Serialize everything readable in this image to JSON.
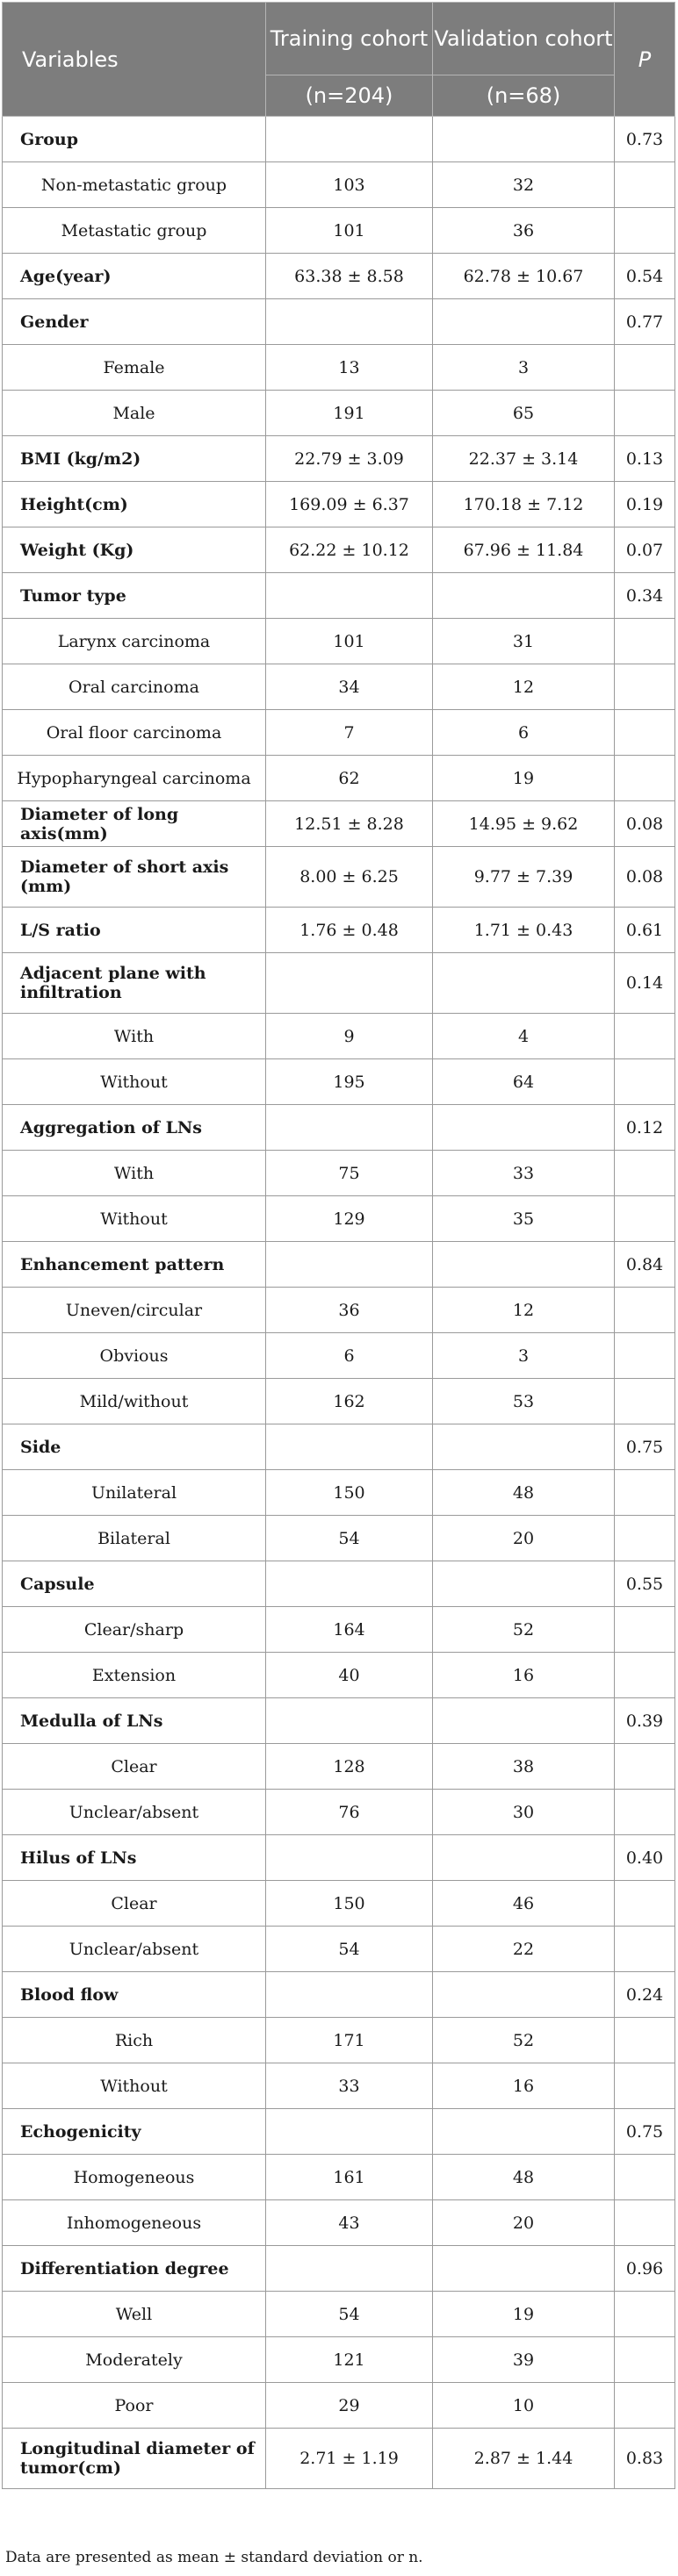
{
  "header": {
    "variables": "Variables",
    "training": "Training cohort",
    "training_n": "(n=204)",
    "validation": "Validation cohort",
    "validation_n": "(n=68)",
    "p": "P"
  },
  "rows": [
    {
      "label": "Group",
      "type": "cat",
      "train": "",
      "val": "",
      "p": "0.73"
    },
    {
      "label": "Non-metastatic group",
      "type": "sub",
      "train": "103",
      "val": "32",
      "p": ""
    },
    {
      "label": "Metastatic group",
      "type": "sub",
      "train": "101",
      "val": "36",
      "p": ""
    },
    {
      "label": "Age(year)",
      "type": "cat",
      "train": "63.38 ± 8.58",
      "val": "62.78 ± 10.67",
      "p": "0.54"
    },
    {
      "label": "Gender",
      "type": "cat",
      "train": "",
      "val": "",
      "p": "0.77"
    },
    {
      "label": "Female",
      "type": "sub",
      "train": "13",
      "val": "3",
      "p": ""
    },
    {
      "label": "Male",
      "type": "sub",
      "train": "191",
      "val": "65",
      "p": ""
    },
    {
      "label": "BMI (kg/m2)",
      "type": "cat",
      "train": "22.79 ± 3.09",
      "val": "22.37 ± 3.14",
      "p": "0.13"
    },
    {
      "label": "Height(cm)",
      "type": "cat",
      "train": "169.09 ± 6.37",
      "val": "170.18 ± 7.12",
      "p": "0.19"
    },
    {
      "label": "Weight (Kg)",
      "type": "cat",
      "train": "62.22 ± 10.12",
      "val": "67.96 ± 11.84",
      "p": "0.07"
    },
    {
      "label": "Tumor type",
      "type": "cat",
      "train": "",
      "val": "",
      "p": "0.34"
    },
    {
      "label": "Larynx carcinoma",
      "type": "sub",
      "train": "101",
      "val": "31",
      "p": ""
    },
    {
      "label": "Oral carcinoma",
      "type": "sub",
      "train": "34",
      "val": "12",
      "p": ""
    },
    {
      "label": "Oral floor carcinoma",
      "type": "sub",
      "train": "7",
      "val": "6",
      "p": ""
    },
    {
      "label": "Hypopharyngeal carcinoma",
      "type": "sub",
      "train": "62",
      "val": "19",
      "p": ""
    },
    {
      "label": "Diameter of long axis(mm)",
      "type": "cat",
      "train": "12.51 ± 8.28",
      "val": "14.95 ± 9.62",
      "p": "0.08"
    },
    {
      "label": "Diameter of short axis (mm)",
      "type": "cat",
      "tall": true,
      "train": "8.00 ± 6.25",
      "val": "9.77 ± 7.39",
      "p": "0.08"
    },
    {
      "label": "L/S ratio",
      "type": "cat",
      "train": "1.76 ± 0.48",
      "val": "1.71 ± 0.43",
      "p": "0.61"
    },
    {
      "label": "Adjacent plane with infiltration",
      "type": "cat",
      "tall": true,
      "train": "",
      "val": "",
      "p": "0.14"
    },
    {
      "label": "With",
      "type": "sub",
      "train": "9",
      "val": "4",
      "p": ""
    },
    {
      "label": "Without",
      "type": "sub",
      "train": "195",
      "val": "64",
      "p": ""
    },
    {
      "label": "Aggregation of LNs",
      "type": "cat",
      "train": "",
      "val": "",
      "p": "0.12"
    },
    {
      "label": "With",
      "type": "sub",
      "train": "75",
      "val": "33",
      "p": ""
    },
    {
      "label": "Without",
      "type": "sub",
      "train": "129",
      "val": "35",
      "p": ""
    },
    {
      "label": "Enhancement pattern",
      "type": "cat",
      "train": "",
      "val": "",
      "p": "0.84"
    },
    {
      "label": "Uneven/circular",
      "type": "sub",
      "train": "36",
      "val": "12",
      "p": ""
    },
    {
      "label": "Obvious",
      "type": "sub",
      "train": "6",
      "val": "3",
      "p": ""
    },
    {
      "label": "Mild/without",
      "type": "sub",
      "train": "162",
      "val": "53",
      "p": ""
    },
    {
      "label": "Side",
      "type": "cat",
      "train": "",
      "val": "",
      "p": "0.75"
    },
    {
      "label": "Unilateral",
      "type": "sub",
      "train": "150",
      "val": "48",
      "p": ""
    },
    {
      "label": "Bilateral",
      "type": "sub",
      "train": "54",
      "val": "20",
      "p": ""
    },
    {
      "label": "Capsule",
      "type": "cat",
      "train": "",
      "val": "",
      "p": "0.55"
    },
    {
      "label": "Clear/sharp",
      "type": "sub",
      "train": "164",
      "val": "52",
      "p": ""
    },
    {
      "label": "Extension",
      "type": "sub",
      "train": "40",
      "val": "16",
      "p": ""
    },
    {
      "label": "Medulla of LNs",
      "type": "cat",
      "train": "",
      "val": "",
      "p": "0.39"
    },
    {
      "label": "Clear",
      "type": "sub",
      "train": "128",
      "val": "38",
      "p": ""
    },
    {
      "label": "Unclear/absent",
      "type": "sub",
      "train": "76",
      "val": "30",
      "p": ""
    },
    {
      "label": "Hilus of LNs",
      "type": "cat",
      "train": "",
      "val": "",
      "p": "0.40"
    },
    {
      "label": "Clear",
      "type": "sub",
      "train": "150",
      "val": "46",
      "p": ""
    },
    {
      "label": "Unclear/absent",
      "type": "sub",
      "train": "54",
      "val": "22",
      "p": ""
    },
    {
      "label": "Blood flow",
      "type": "cat",
      "train": "",
      "val": "",
      "p": "0.24"
    },
    {
      "label": "Rich",
      "type": "sub",
      "train": "171",
      "val": "52",
      "p": ""
    },
    {
      "label": "Without",
      "type": "sub",
      "train": "33",
      "val": "16",
      "p": ""
    },
    {
      "label": "Echogenicity",
      "type": "cat",
      "train": "",
      "val": "",
      "p": "0.75"
    },
    {
      "label": "Homogeneous",
      "type": "sub",
      "train": "161",
      "val": "48",
      "p": ""
    },
    {
      "label": "Inhomogeneous",
      "type": "sub",
      "train": "43",
      "val": "20",
      "p": ""
    },
    {
      "label": "Differentiation degree",
      "type": "cat",
      "train": "",
      "val": "",
      "p": "0.96"
    },
    {
      "label": "Well",
      "type": "sub",
      "train": "54",
      "val": "19",
      "p": ""
    },
    {
      "label": "Moderately",
      "type": "sub",
      "train": "121",
      "val": "39",
      "p": ""
    },
    {
      "label": "Poor",
      "type": "sub",
      "train": "29",
      "val": "10",
      "p": ""
    },
    {
      "label": "Longitudinal diameter of tumor(cm)",
      "type": "cat",
      "tall": true,
      "train": "2.71 ± 1.19",
      "val": "2.87 ± 1.44",
      "p": "0.83"
    }
  ],
  "footnote": "Data are presented as mean ± standard deviation or n."
}
